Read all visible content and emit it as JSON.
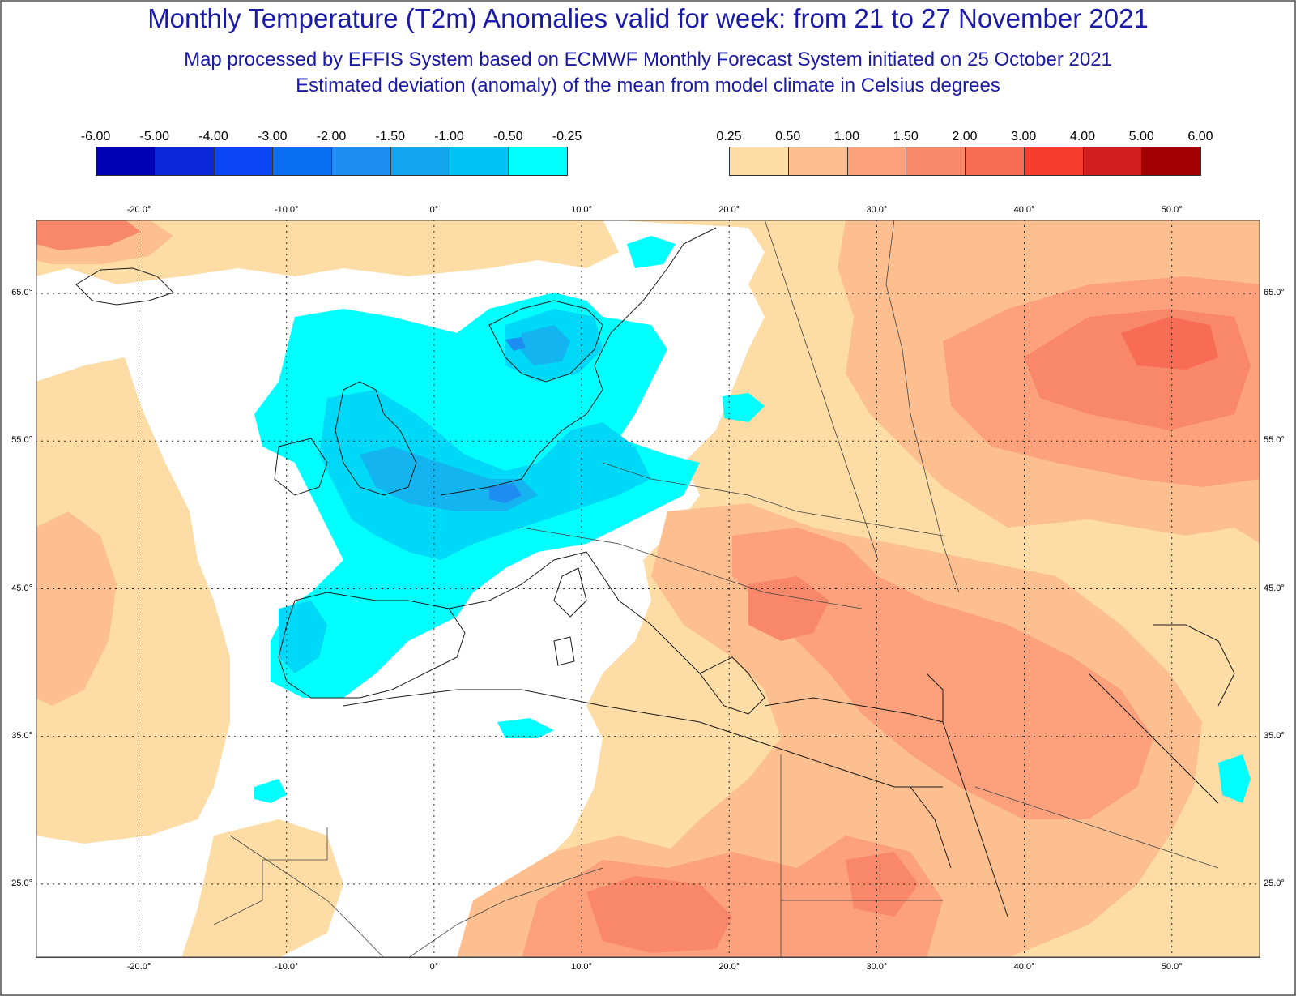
{
  "titles": {
    "main": "Monthly Temperature (T2m) Anomalies valid for week: from 21 to 27 November 2021",
    "sub1": "Map processed by EFFIS System based on ECMWF Monthly Forecast System initiated on 25 October 2021",
    "sub2": "Estimated deviation (anomaly) of the mean from model climate in Celsius degrees"
  },
  "legend": {
    "negative": {
      "labels": [
        "-6.00",
        "-5.00",
        "-4.00",
        "-3.00",
        "-2.00",
        "-1.50",
        "-1.00",
        "-0.50",
        "-0.25"
      ],
      "colors": [
        "#0000b4",
        "#0a28d8",
        "#0a46f5",
        "#0a6ef0",
        "#1e8cf0",
        "#14a5ef",
        "#00c3f5",
        "#00ffff"
      ]
    },
    "positive": {
      "labels": [
        "0.25",
        "0.50",
        "1.00",
        "1.50",
        "2.00",
        "3.00",
        "4.00",
        "5.00",
        "6.00"
      ],
      "colors": [
        "#fddca5",
        "#fdbf8f",
        "#fca17c",
        "#f98769",
        "#f86b55",
        "#f53c2d",
        "#d21e1e",
        "#a00000"
      ]
    }
  },
  "map": {
    "lon_range": [
      -27,
      56
    ],
    "lat_range": [
      20,
      70
    ],
    "top_lon_ticks": [
      "-20.0°",
      "-10.0°",
      "0°",
      "10.0°",
      "20.0°",
      "30.0°",
      "40.0°",
      "50.0°"
    ],
    "bottom_lon_ticks": [
      "-20.0°",
      "-10.0°",
      "0°",
      "10.0°",
      "20.0°",
      "30.0°",
      "40.0°",
      "50.0°"
    ],
    "left_lat_ticks": [
      "65.0°",
      "55.0°",
      "45.0°",
      "35.0°",
      "25.0°"
    ],
    "right_lat_ticks": [
      "65.0°",
      "55.0°",
      "45.0°",
      "35.0°",
      "25.0°"
    ],
    "lon_values": [
      -20,
      -10,
      0,
      10,
      20,
      30,
      40,
      50
    ],
    "lat_values": [
      65,
      55,
      45,
      35,
      25
    ],
    "colors": {
      "cyan": "#00ffff",
      "light_blue": "#00d8f8",
      "mid_blue": "#14b4f0",
      "deep_blue": "#1e8cf0",
      "beige": "#fddca5",
      "peach": "#fdbf8f",
      "salmon": "#fca17c",
      "coral": "#f98769",
      "red": "#f86b55"
    }
  }
}
